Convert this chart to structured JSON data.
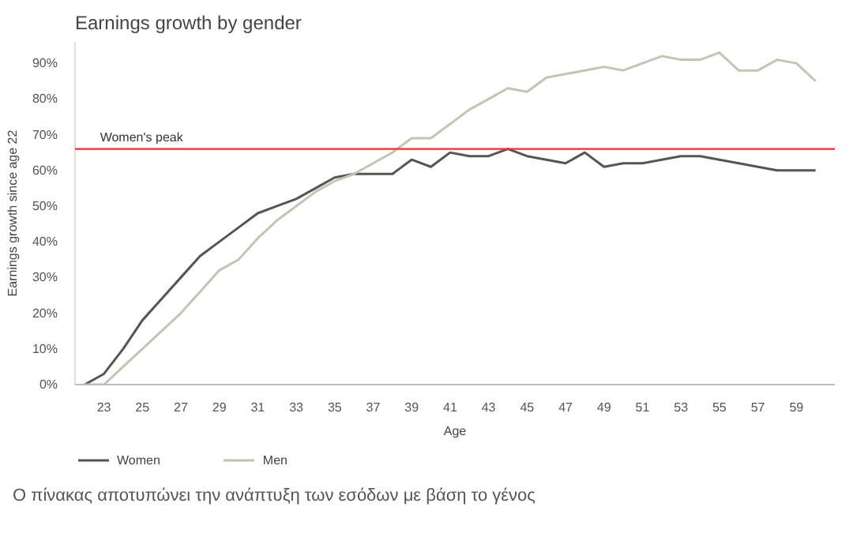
{
  "chart_data": {
    "type": "line",
    "title": "Earnings growth by gender",
    "xlabel": "Age",
    "ylabel": "Earnings growth since age 22",
    "x": [
      22,
      23,
      24,
      25,
      26,
      27,
      28,
      29,
      30,
      31,
      32,
      33,
      34,
      35,
      36,
      37,
      38,
      39,
      40,
      41,
      42,
      43,
      44,
      45,
      46,
      47,
      48,
      49,
      50,
      51,
      52,
      53,
      54,
      55,
      56,
      57,
      58,
      59,
      60
    ],
    "series": [
      {
        "name": "Women",
        "color": "#555555",
        "values": [
          0,
          3,
          10,
          18,
          24,
          30,
          36,
          40,
          44,
          48,
          50,
          52,
          55,
          58,
          59,
          59,
          59,
          63,
          61,
          65,
          64,
          64,
          66,
          64,
          63,
          62,
          65,
          61,
          62,
          62,
          63,
          64,
          64,
          63,
          62,
          61,
          60,
          60,
          60
        ]
      },
      {
        "name": "Men",
        "color": "#c8c2b4",
        "values": [
          0,
          0,
          5,
          10,
          15,
          20,
          26,
          32,
          35,
          41,
          46,
          50,
          54,
          57,
          59,
          62,
          65,
          69,
          69,
          73,
          77,
          80,
          83,
          82,
          86,
          87,
          88,
          89,
          88,
          90,
          92,
          91,
          91,
          93,
          88,
          88,
          91,
          90,
          85
        ]
      }
    ],
    "ref_lines": [
      {
        "axis": "y",
        "value": 66,
        "label": "Women's peak",
        "color": "#ff2a2a"
      }
    ],
    "xlim": [
      21.5,
      61
    ],
    "ylim": [
      0,
      96
    ],
    "xticks": [
      23,
      25,
      27,
      29,
      31,
      33,
      35,
      37,
      39,
      41,
      43,
      45,
      47,
      49,
      51,
      53,
      55,
      57,
      59
    ],
    "yticks": [
      {
        "value": 0,
        "label": "0%"
      },
      {
        "value": 10,
        "label": "10%"
      },
      {
        "value": 20,
        "label": "20%"
      },
      {
        "value": 30,
        "label": "30%"
      },
      {
        "value": 40,
        "label": "40%"
      },
      {
        "value": 50,
        "label": "50%"
      },
      {
        "value": 60,
        "label": "60%"
      },
      {
        "value": 70,
        "label": "70%"
      },
      {
        "value": 80,
        "label": "80%"
      },
      {
        "value": 90,
        "label": "90%"
      }
    ],
    "grid": false,
    "legend": "bottom left",
    "line_style": "solid",
    "annotations": [
      "Ο πίνακας αποτυπώνει την ανάπτυξη των εσόδων με βάση το γένος"
    ]
  }
}
